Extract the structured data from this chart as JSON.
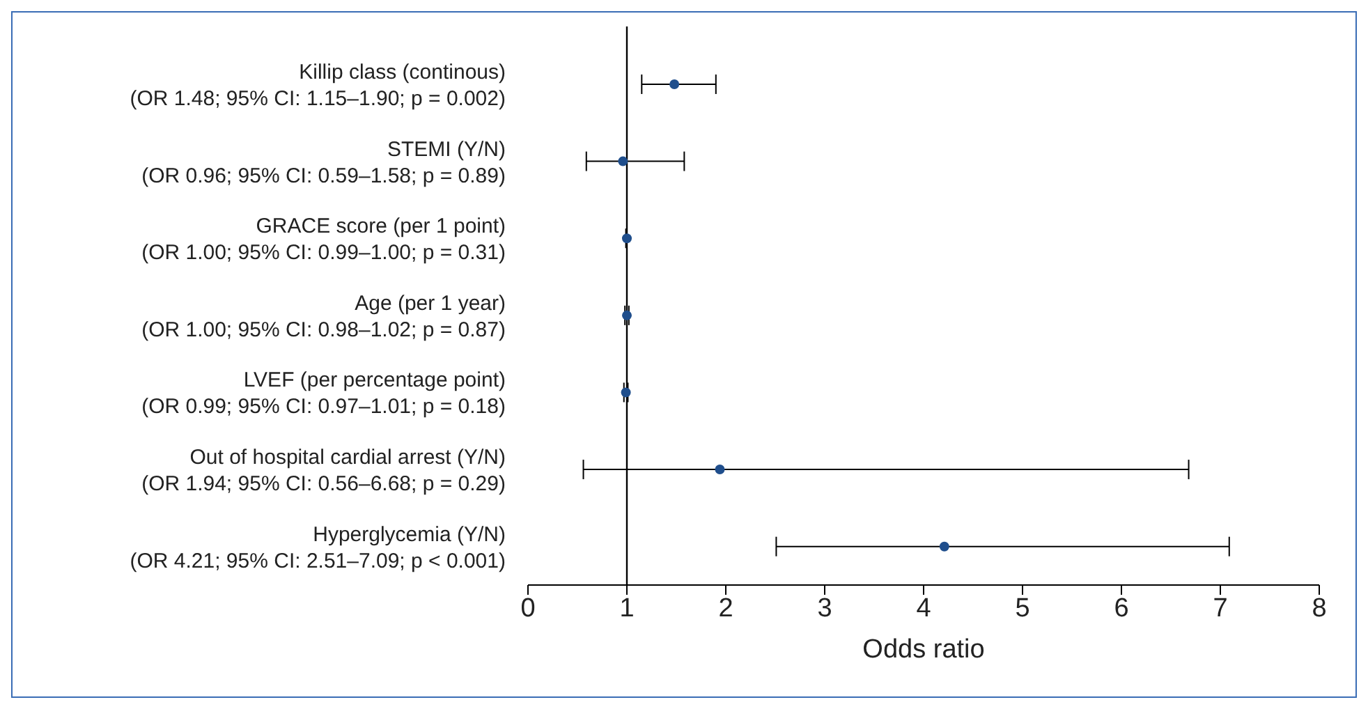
{
  "chart_data": {
    "type": "scatter",
    "orientation": "horizontal",
    "xlabel": "Odds ratio",
    "categories": [
      "Killip class (continous)\n(OR 1.48; 95% CI: 1.15–1.90; p = 0.002)",
      "STEMI (Y/N)\n(OR 0.96; 95% CI: 0.59–1.58; p = 0.89)",
      "GRACE score (per 1 point)\n(OR 1.00; 95% CI: 0.99–1.00; p = 0.31)",
      "Age (per 1 year)\n(OR 1.00; 95% CI: 0.98–1.02; p = 0.87)",
      "LVEF (per percentage point)\n(OR 0.99; 95% CI: 0.97–1.01; p = 0.18)",
      "Out of hospital cardial arrest (Y/N)\n(OR 1.94; 95% CI: 0.56–6.68; p = 0.29)",
      "Hyperglycemia (Y/N)\n(OR 4.21; 95% CI: 2.51–7.09; p < 0.001)"
    ],
    "values": [
      1.48,
      0.96,
      1.0,
      1.0,
      0.99,
      1.94,
      4.21
    ],
    "errors": [
      [
        1.15,
        1.9
      ],
      [
        0.59,
        1.58
      ],
      [
        0.99,
        1.0
      ],
      [
        0.98,
        1.02
      ],
      [
        0.97,
        1.01
      ],
      [
        0.56,
        6.68
      ],
      [
        2.51,
        7.09
      ]
    ],
    "color": "#1f4e8c",
    "marker": "circle",
    "xlim": [
      0,
      8
    ],
    "xticks": [
      0,
      1,
      2,
      3,
      4,
      5,
      6,
      7,
      8
    ],
    "ref_lines": [
      {
        "axis": "x",
        "value": 1,
        "color": "#000000"
      }
    ],
    "grid": false,
    "legend": false
  }
}
